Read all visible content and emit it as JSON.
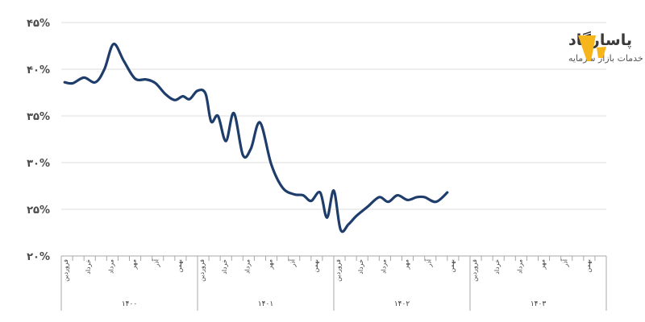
{
  "brand": {
    "name": "پاسارگاد",
    "subtitle": "گروه خدمات بازار سرمایه",
    "logo_color": "#F5B51B"
  },
  "chart_data": {
    "type": "line",
    "title": "",
    "xlabel": "",
    "ylabel": "",
    "ylim": [
      20,
      45
    ],
    "grid": true,
    "legend": "none",
    "y_ticks": [
      {
        "value": 20,
        "label": "۲۰%"
      },
      {
        "value": 25,
        "label": "۲۵%"
      },
      {
        "value": 30,
        "label": "۳۰%"
      },
      {
        "value": 35,
        "label": "۳۵%"
      },
      {
        "value": 40,
        "label": "۴۰%"
      },
      {
        "value": 45,
        "label": "۴۵%"
      }
    ],
    "x_range": [
      0,
      48
    ],
    "month_ticks": [
      {
        "x": 0,
        "label": "فروردین"
      },
      {
        "x": 2,
        "label": "خرداد"
      },
      {
        "x": 4,
        "label": "مرداد"
      },
      {
        "x": 6,
        "label": "مهر"
      },
      {
        "x": 8,
        "label": "آذر"
      },
      {
        "x": 10,
        "label": "بهمن"
      },
      {
        "x": 12,
        "label": "فروردین"
      },
      {
        "x": 14,
        "label": "خرداد"
      },
      {
        "x": 16,
        "label": "مرداد"
      },
      {
        "x": 18,
        "label": "مهر"
      },
      {
        "x": 20,
        "label": "آذر"
      },
      {
        "x": 22,
        "label": "بهمن"
      },
      {
        "x": 24,
        "label": "فروردین"
      },
      {
        "x": 26,
        "label": "خرداد"
      },
      {
        "x": 28,
        "label": "مرداد"
      },
      {
        "x": 30,
        "label": "مهر"
      },
      {
        "x": 32,
        "label": "آذر"
      },
      {
        "x": 34,
        "label": "بهمن"
      },
      {
        "x": 36,
        "label": "فروردین"
      },
      {
        "x": 38,
        "label": "خرداد"
      },
      {
        "x": 40,
        "label": "مرداد"
      },
      {
        "x": 42,
        "label": "مهر"
      },
      {
        "x": 44,
        "label": "آذر"
      },
      {
        "x": 46,
        "label": "بهمن"
      }
    ],
    "years": [
      {
        "start": 0,
        "end": 12,
        "label": "۱۴۰۰"
      },
      {
        "start": 12,
        "end": 24,
        "label": "۱۴۰۱"
      },
      {
        "start": 24,
        "end": 36,
        "label": "۱۴۰۲"
      },
      {
        "start": 36,
        "end": 48,
        "label": "۱۴۰۳"
      }
    ],
    "series": [
      {
        "name": "series-1",
        "color": "#1F3D6B",
        "points": [
          [
            0.3,
            38.6
          ],
          [
            1.0,
            38.5
          ],
          [
            2.0,
            39.1
          ],
          [
            3.0,
            38.6
          ],
          [
            3.8,
            40.0
          ],
          [
            4.6,
            42.7
          ],
          [
            5.5,
            40.9
          ],
          [
            6.5,
            39.0
          ],
          [
            7.5,
            38.9
          ],
          [
            8.3,
            38.5
          ],
          [
            9.2,
            37.3
          ],
          [
            10.0,
            36.7
          ],
          [
            10.7,
            37.1
          ],
          [
            11.3,
            36.8
          ],
          [
            12.0,
            37.7
          ],
          [
            12.7,
            37.4
          ],
          [
            13.2,
            34.4
          ],
          [
            13.8,
            35.0
          ],
          [
            14.5,
            32.3
          ],
          [
            15.2,
            35.3
          ],
          [
            16.0,
            30.8
          ],
          [
            16.7,
            31.5
          ],
          [
            17.5,
            34.3
          ],
          [
            18.5,
            29.8
          ],
          [
            19.5,
            27.3
          ],
          [
            20.5,
            26.6
          ],
          [
            21.3,
            26.5
          ],
          [
            22.0,
            25.9
          ],
          [
            22.8,
            26.8
          ],
          [
            23.4,
            24.1
          ],
          [
            24.0,
            27.0
          ],
          [
            24.6,
            22.8
          ],
          [
            25.3,
            23.4
          ],
          [
            26.0,
            24.3
          ],
          [
            27.0,
            25.3
          ],
          [
            28.0,
            26.3
          ],
          [
            28.8,
            25.8
          ],
          [
            29.6,
            26.5
          ],
          [
            30.5,
            26.0
          ],
          [
            31.3,
            26.3
          ],
          [
            32.0,
            26.3
          ],
          [
            33.0,
            25.8
          ],
          [
            34.0,
            26.8
          ]
        ]
      }
    ]
  }
}
